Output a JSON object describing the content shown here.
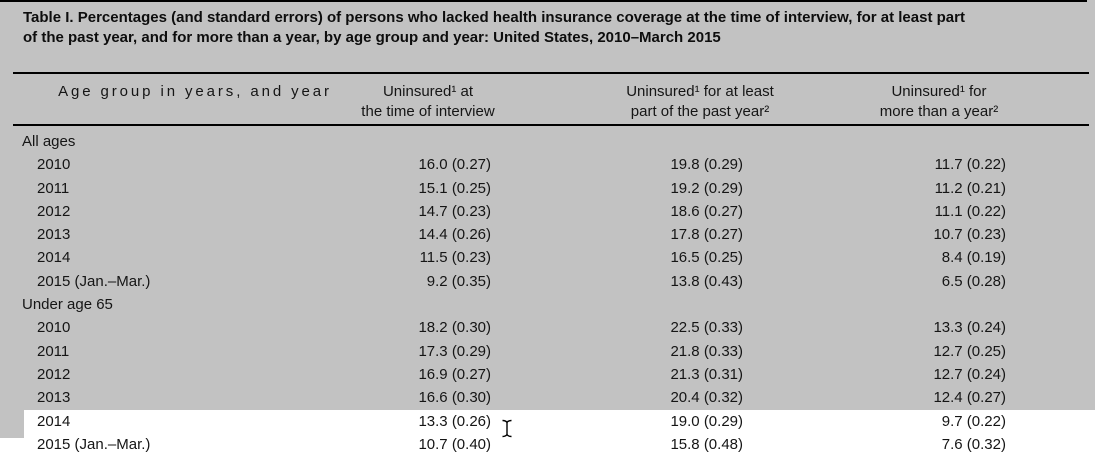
{
  "colors": {
    "selection_gray": "#c2c2c2",
    "page_white": "#ffffff",
    "text": "#151515",
    "rule_black": "#000000"
  },
  "title": {
    "lines": [
      "Table I. Percentages (and standard errors) of persons who lacked health insurance coverage at the time of interview, for at least part",
      "of the past year, and for more than a year, by age group and year: United States, 2010–March 2015"
    ]
  },
  "table": {
    "columns": [
      {
        "id": "age_group",
        "line1": "",
        "line2": "Age group in years, and year"
      },
      {
        "id": "uninsured_at_interview",
        "line1": "Uninsured¹ at",
        "line2": "the time of interview"
      },
      {
        "id": "uninsured_part_of_year",
        "line1": "Uninsured¹ for at least",
        "line2": "part of the past year²"
      },
      {
        "id": "uninsured_more_than_year",
        "line1": "Uninsured¹ for",
        "line2": "more than a year²"
      }
    ],
    "sections": [
      {
        "label": "All ages",
        "rows": [
          {
            "year": "2010",
            "at_interview": "16.0 (0.27)",
            "part_of_year": "19.8 (0.29)",
            "more_than_year": "11.7 (0.22)"
          },
          {
            "year": "2011",
            "at_interview": "15.1 (0.25)",
            "part_of_year": "19.2 (0.29)",
            "more_than_year": "11.2 (0.21)"
          },
          {
            "year": "2012",
            "at_interview": "14.7 (0.23)",
            "part_of_year": "18.6 (0.27)",
            "more_than_year": "11.1 (0.22)"
          },
          {
            "year": "2013",
            "at_interview": "14.4 (0.26)",
            "part_of_year": "17.8 (0.27)",
            "more_than_year": "10.7 (0.23)"
          },
          {
            "year": "2014",
            "at_interview": "11.5 (0.23)",
            "part_of_year": "16.5 (0.25)",
            "more_than_year": "8.4 (0.19)"
          },
          {
            "year": "2015 (Jan.–Mar.)",
            "at_interview": "9.2 (0.35)",
            "part_of_year": "13.8 (0.43)",
            "more_than_year": "6.5 (0.28)"
          }
        ]
      },
      {
        "label": "Under age 65",
        "rows": [
          {
            "year": "2010",
            "at_interview": "18.2 (0.30)",
            "part_of_year": "22.5 (0.33)",
            "more_than_year": "13.3 (0.24)"
          },
          {
            "year": "2011",
            "at_interview": "17.3 (0.29)",
            "part_of_year": "21.8 (0.33)",
            "more_than_year": "12.7 (0.25)"
          },
          {
            "year": "2012",
            "at_interview": "16.9 (0.27)",
            "part_of_year": "21.3 (0.31)",
            "more_than_year": "12.7 (0.24)"
          },
          {
            "year": "2013",
            "at_interview": "16.6 (0.30)",
            "part_of_year": "20.4 (0.32)",
            "more_than_year": "12.4 (0.27)"
          },
          {
            "year": "2014",
            "at_interview": "13.3 (0.26)",
            "part_of_year": "19.0 (0.29)",
            "more_than_year": "9.7 (0.22)"
          },
          {
            "year": "2015 (Jan.–Mar.)",
            "at_interview": "10.7 (0.40)",
            "part_of_year": "15.8 (0.48)",
            "more_than_year": "7.6 (0.32)"
          }
        ]
      }
    ]
  },
  "cursor": {
    "icon": "text-ibeam-cursor"
  }
}
